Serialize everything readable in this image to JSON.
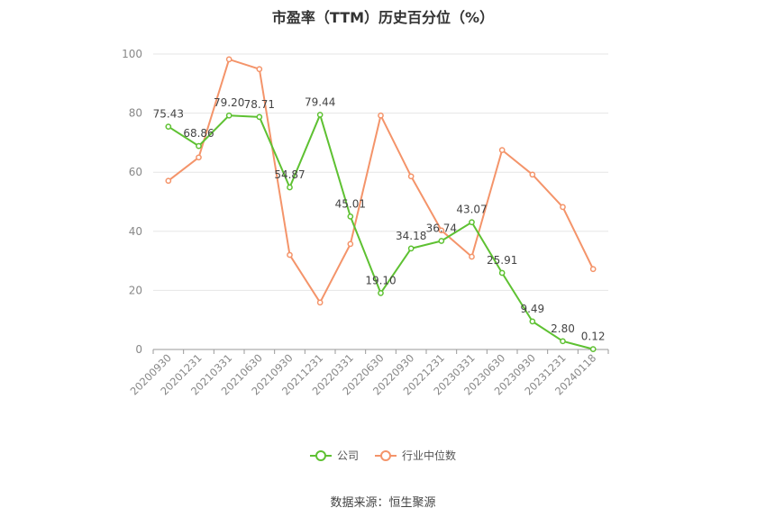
{
  "chart_data": {
    "type": "line",
    "title": "市盈率（TTM）历史百分位（%）",
    "categories": [
      "20200930",
      "20201231",
      "20210331",
      "20210630",
      "20210930",
      "20211231",
      "20220331",
      "20220630",
      "20220930",
      "20221231",
      "20230331",
      "20230630",
      "20230930",
      "20231231",
      "20240118"
    ],
    "ylim": [
      0,
      100
    ],
    "yticks": [
      0,
      20,
      40,
      60,
      80,
      100
    ],
    "grid": true,
    "legend_position": "bottom",
    "series": [
      {
        "name": "公司",
        "color": "#5ec132",
        "values": [
          75.43,
          68.86,
          79.2,
          78.71,
          54.87,
          79.44,
          45.01,
          19.1,
          34.18,
          36.74,
          43.07,
          25.91,
          9.49,
          2.8,
          0.12
        ],
        "labels": [
          "75.43",
          "68.86",
          "79.20",
          "78.71",
          "54.87",
          "79.44",
          "45.01",
          "19.10",
          "34.18",
          "36.74",
          "43.07",
          "25.91",
          "9.49",
          "2.80",
          "0.12"
        ]
      },
      {
        "name": "行业中位数",
        "color": "#f4946a",
        "values": [
          57.1,
          65.0,
          98.2,
          94.9,
          32.0,
          15.9,
          35.7,
          79.2,
          58.6,
          40.3,
          31.4,
          67.5,
          59.2,
          48.2,
          27.2
        ]
      }
    ]
  },
  "source": "数据来源：恒生聚源"
}
